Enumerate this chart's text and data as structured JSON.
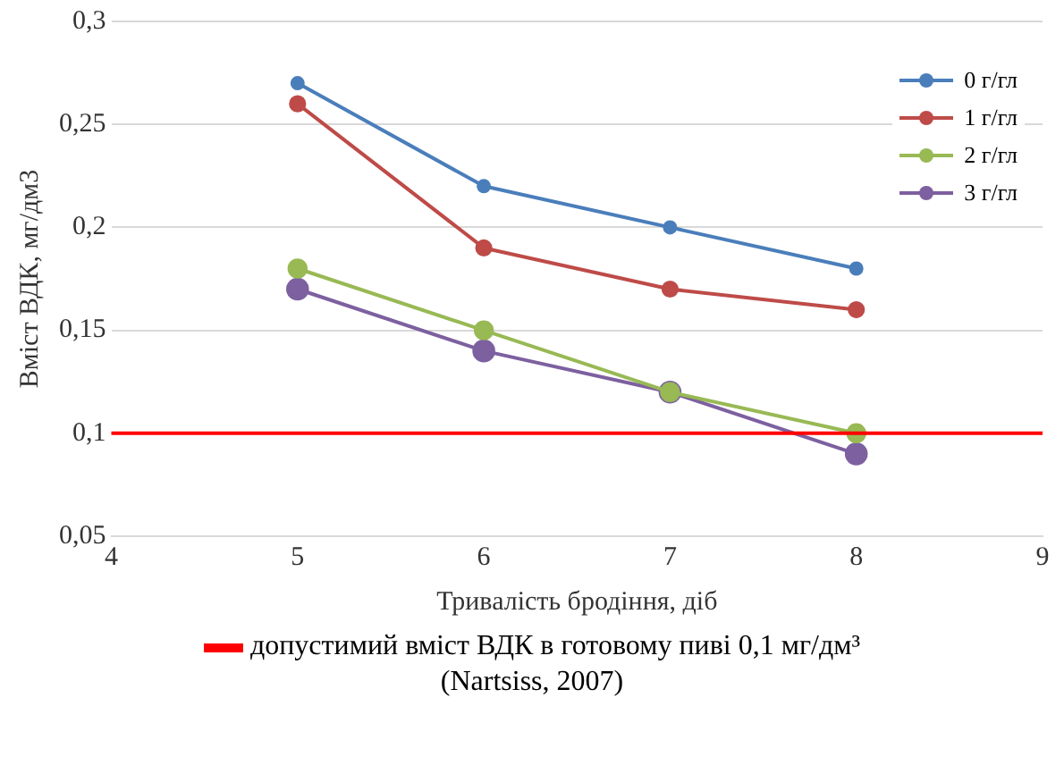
{
  "chart_data": {
    "type": "line",
    "xlabel": "Тривалість бродіння, діб",
    "ylabel": "Вміст ВДК, мг/дм3",
    "x": [
      5,
      6,
      7,
      8
    ],
    "series": [
      {
        "name": "0 г/гл",
        "color": "#4a7ebb",
        "values": [
          0.27,
          0.22,
          0.2,
          0.18
        ]
      },
      {
        "name": "1 г/гл",
        "color": "#be4b48",
        "values": [
          0.26,
          0.19,
          0.17,
          0.16
        ]
      },
      {
        "name": "2 г/гл",
        "color": "#98b954",
        "values": [
          0.18,
          0.15,
          0.12,
          0.1
        ]
      },
      {
        "name": "3 г/гл",
        "color": "#7d60a0",
        "values": [
          0.17,
          0.14,
          0.12,
          0.09
        ]
      }
    ],
    "xlim": [
      4,
      9
    ],
    "xticks": [
      4,
      5,
      6,
      7,
      8,
      9
    ],
    "ylim": [
      0.05,
      0.3
    ],
    "yticks": [
      {
        "value": 0.05,
        "label": "0,05"
      },
      {
        "value": 0.1,
        "label": "0,1"
      },
      {
        "value": 0.15,
        "label": "0,15"
      },
      {
        "value": 0.2,
        "label": "0,2"
      },
      {
        "value": 0.25,
        "label": "0,25"
      },
      {
        "value": 0.3,
        "label": "0,3"
      }
    ],
    "ref_lines": [
      {
        "axis": "y",
        "value": 0.1,
        "color": "#ff0000"
      }
    ],
    "annotations": [
      "допустимий вміст ВДК в готовому пиві 0,1 мг/дм³",
      "(Nartsiss, 2007)"
    ],
    "grid": "y",
    "legend": "top right",
    "marker": "circle",
    "line_style": "solid"
  }
}
